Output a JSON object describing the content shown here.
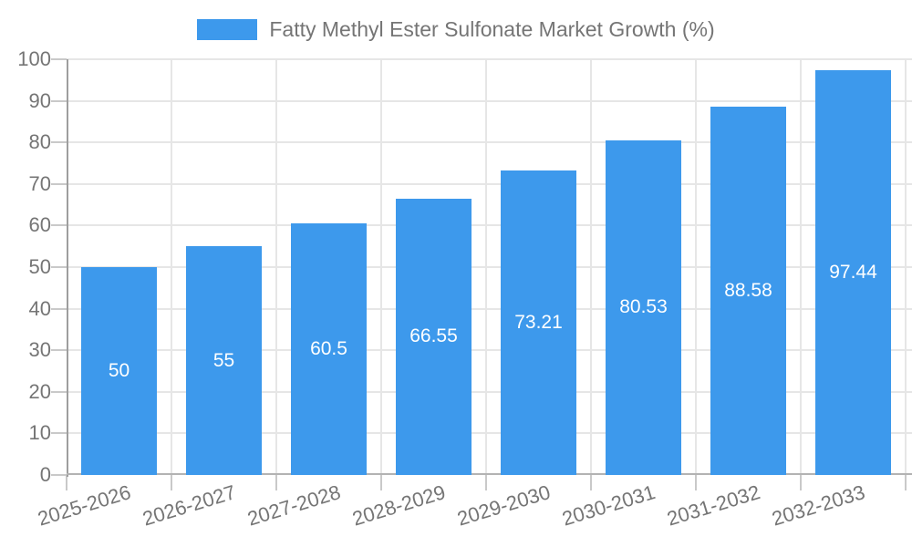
{
  "chart_data": {
    "type": "bar",
    "title": "",
    "legend": {
      "label": "Fatty Methyl Ester Sulfonate Market Growth (%)",
      "position": "top"
    },
    "categories": [
      "2025-2026",
      "2026-2027",
      "2027-2028",
      "2028-2029",
      "2029-2030",
      "2030-2031",
      "2031-2032",
      "2032-2033"
    ],
    "values": [
      50,
      55,
      60.5,
      66.55,
      73.21,
      80.53,
      88.58,
      97.44
    ],
    "value_labels": [
      "50",
      "55",
      "60.5",
      "66.55",
      "73.21",
      "80.53",
      "88.58",
      "97.44"
    ],
    "xlabel": "",
    "ylabel": "",
    "ylim": [
      0,
      100
    ],
    "yticks": [
      0,
      10,
      20,
      30,
      40,
      50,
      60,
      70,
      80,
      90,
      100
    ],
    "grid": true,
    "value_label_position": "inside-center",
    "xtick_rotation_deg": -17,
    "colors": {
      "bar": "#3D99EC",
      "axis_text": "#757575",
      "value_label_text": "#FFFFFF",
      "gridline": "#E6E6E6",
      "y_axis_line": "#9E9E9E",
      "baseline": "#B3B3B3",
      "tick_mark": "#C9C9C9",
      "background": "#FFFFFF"
    }
  }
}
